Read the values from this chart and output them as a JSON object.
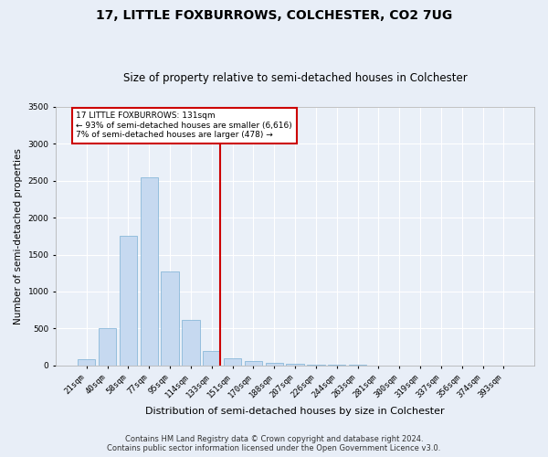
{
  "title": "17, LITTLE FOXBURROWS, COLCHESTER, CO2 7UG",
  "subtitle": "Size of property relative to semi-detached houses in Colchester",
  "xlabel": "Distribution of semi-detached houses by size in Colchester",
  "ylabel": "Number of semi-detached properties",
  "categories": [
    "21sqm",
    "40sqm",
    "58sqm",
    "77sqm",
    "95sqm",
    "114sqm",
    "133sqm",
    "151sqm",
    "170sqm",
    "188sqm",
    "207sqm",
    "226sqm",
    "244sqm",
    "263sqm",
    "281sqm",
    "300sqm",
    "319sqm",
    "337sqm",
    "356sqm",
    "374sqm",
    "393sqm"
  ],
  "values": [
    80,
    500,
    1750,
    2540,
    1270,
    620,
    200,
    100,
    60,
    40,
    20,
    10,
    5,
    5,
    2,
    2,
    2,
    1,
    1,
    1,
    1
  ],
  "bar_color": "#c6d9f0",
  "bar_edge_color": "#7bafd4",
  "vline_color": "#cc0000",
  "annotation_text": "17 LITTLE FOXBURROWS: 131sqm\n← 93% of semi-detached houses are smaller (6,616)\n7% of semi-detached houses are larger (478) →",
  "annotation_box_color": "#cc0000",
  "ylim": [
    0,
    3500
  ],
  "yticks": [
    0,
    500,
    1000,
    1500,
    2000,
    2500,
    3000,
    3500
  ],
  "footer_line1": "Contains HM Land Registry data © Crown copyright and database right 2024.",
  "footer_line2": "Contains public sector information licensed under the Open Government Licence v3.0.",
  "bg_color": "#e8eef7",
  "plot_bg_color": "#eaf0f8",
  "grid_color": "#ffffff",
  "title_fontsize": 10,
  "subtitle_fontsize": 8.5,
  "axis_label_fontsize": 7.5,
  "tick_fontsize": 6.5,
  "footer_fontsize": 6,
  "vline_index": 6
}
